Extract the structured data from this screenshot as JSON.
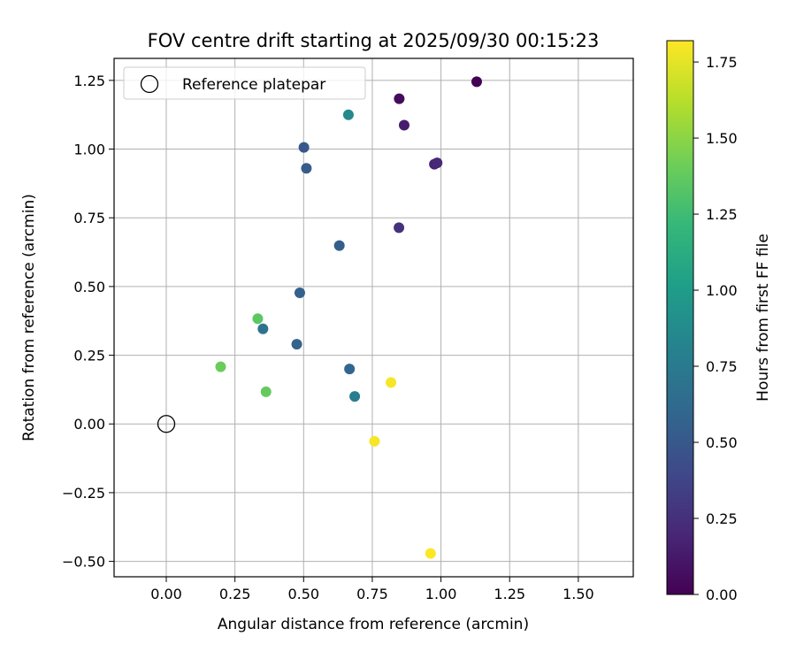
{
  "chart_data": {
    "type": "scatter",
    "title": "FOV centre drift starting at 2025/09/30 00:15:23",
    "xlabel": "Angular distance from reference (arcmin)",
    "ylabel": "Rotation from reference (arcmin)",
    "xlim": [
      -0.19,
      1.7
    ],
    "ylim": [
      -0.556,
      1.33
    ],
    "xticks": [
      0.0,
      0.25,
      0.5,
      0.75,
      1.0,
      1.25,
      1.5
    ],
    "xtick_labels": [
      "0.00",
      "0.25",
      "0.50",
      "0.75",
      "1.00",
      "1.25",
      "1.50"
    ],
    "yticks": [
      -0.5,
      -0.25,
      0.0,
      0.25,
      0.5,
      0.75,
      1.0,
      1.25
    ],
    "ytick_labels": [
      "−0.50",
      "−0.25",
      "0.00",
      "0.25",
      "0.50",
      "0.75",
      "1.00",
      "1.25"
    ],
    "grid": true,
    "legend": {
      "position": "top-left",
      "entries": [
        "Reference platepar"
      ]
    },
    "reference_point": {
      "x": 0.0,
      "y": 0.0,
      "label": "Reference platepar"
    },
    "colorbar": {
      "label": "Hours from first FF file",
      "colormap": "viridis",
      "range": [
        0.0,
        1.82
      ],
      "ticks": [
        0.0,
        0.25,
        0.5,
        0.75,
        1.0,
        1.25,
        1.5,
        1.75
      ],
      "tick_labels": [
        "0.00",
        "0.25",
        "0.50",
        "0.75",
        "1.00",
        "1.25",
        "1.50",
        "1.75"
      ]
    },
    "points": [
      {
        "x": 1.13,
        "y": 1.245,
        "hours": 0.0
      },
      {
        "x": 0.848,
        "y": 1.183,
        "hours": 0.05
      },
      {
        "x": 0.866,
        "y": 1.087,
        "hours": 0.14
      },
      {
        "x": 0.976,
        "y": 0.945,
        "hours": 0.18
      },
      {
        "x": 0.986,
        "y": 0.95,
        "hours": 0.2
      },
      {
        "x": 0.847,
        "y": 0.714,
        "hours": 0.26
      },
      {
        "x": 0.501,
        "y": 1.006,
        "hours": 0.5
      },
      {
        "x": 0.51,
        "y": 0.93,
        "hours": 0.52
      },
      {
        "x": 0.63,
        "y": 0.649,
        "hours": 0.54
      },
      {
        "x": 0.486,
        "y": 0.477,
        "hours": 0.56
      },
      {
        "x": 0.475,
        "y": 0.29,
        "hours": 0.58
      },
      {
        "x": 0.667,
        "y": 0.2,
        "hours": 0.6
      },
      {
        "x": 0.352,
        "y": 0.346,
        "hours": 0.7
      },
      {
        "x": 0.686,
        "y": 0.1,
        "hours": 0.78
      },
      {
        "x": 0.663,
        "y": 1.125,
        "hours": 0.85
      },
      {
        "x": 0.333,
        "y": 0.383,
        "hours": 1.35
      },
      {
        "x": 0.363,
        "y": 0.117,
        "hours": 1.38
      },
      {
        "x": 0.198,
        "y": 0.208,
        "hours": 1.4
      },
      {
        "x": 0.818,
        "y": 0.151,
        "hours": 1.8
      },
      {
        "x": 0.758,
        "y": -0.063,
        "hours": 1.8
      },
      {
        "x": 0.962,
        "y": -0.471,
        "hours": 1.82
      }
    ]
  }
}
